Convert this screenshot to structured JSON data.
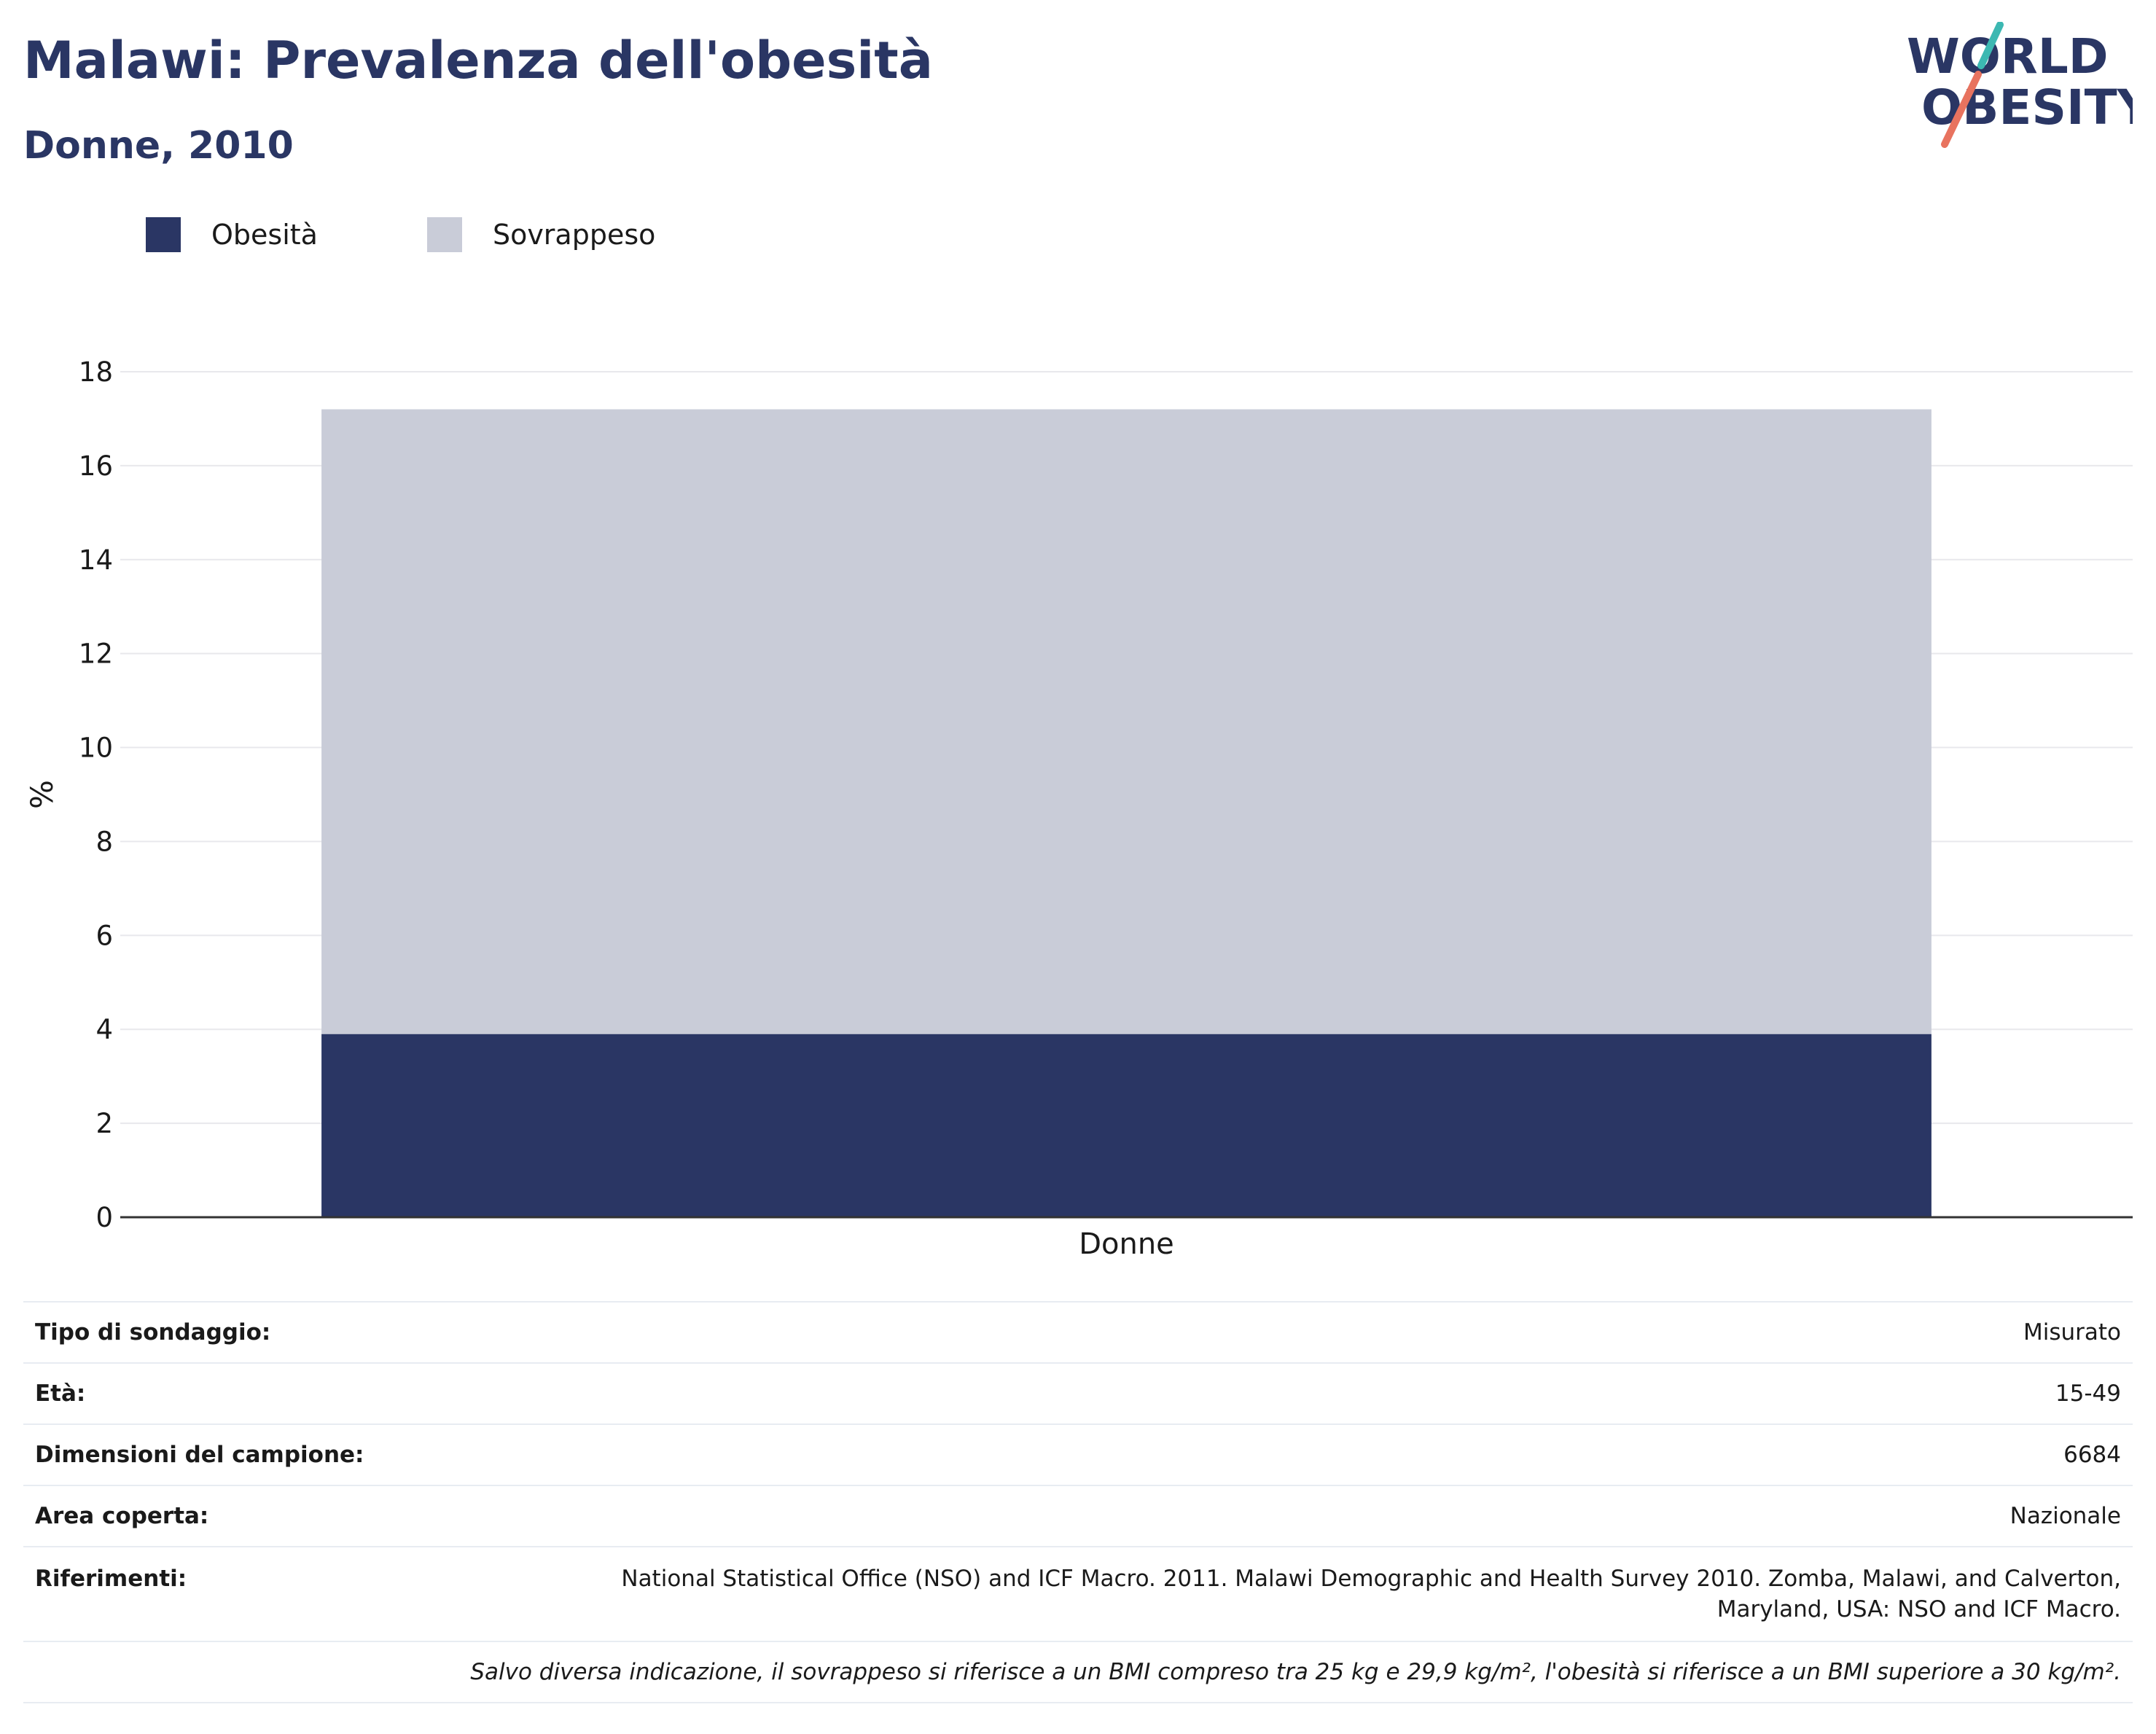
{
  "header": {
    "title": "Malawi: Prevalenza dell'obesità",
    "subtitle": "Donne, 2010",
    "logo_line1": "WORLD",
    "logo_line2": "OBESITY"
  },
  "legend": [
    {
      "label": "Obesità",
      "color": "#2a3664"
    },
    {
      "label": "Sovrappeso",
      "color": "#c9ccd8"
    }
  ],
  "chart_data": {
    "type": "bar",
    "stacked": true,
    "categories": [
      "Donne"
    ],
    "series": [
      {
        "name": "Obesità",
        "values": [
          3.9
        ],
        "color": "#2a3664"
      },
      {
        "name": "Sovrappeso",
        "values": [
          13.3
        ],
        "color": "#c9ccd8"
      }
    ],
    "ylabel": "%",
    "ylim": [
      0,
      18
    ],
    "yticks": [
      0,
      2,
      4,
      6,
      8,
      10,
      12,
      14,
      16,
      18
    ],
    "grid": true,
    "legend_position": "top-left"
  },
  "info": {
    "survey_type": {
      "label": "Tipo di sondaggio:",
      "value": "Misurato"
    },
    "age": {
      "label": "Età:",
      "value": "15-49"
    },
    "sample_size": {
      "label": "Dimensioni del campione:",
      "value": "6684"
    },
    "area": {
      "label": "Area coperta:",
      "value": "Nazionale"
    },
    "references": {
      "label": "Riferimenti:",
      "value_line1": "National Statistical Office (NSO) and ICF Macro. 2011. Malawi Demographic and Health Survey 2010. Zomba, Malawi, and Calverton,",
      "value_line2": "Maryland, USA: NSO and ICF Macro."
    },
    "note": "Salvo diversa indicazione, il sovrappeso si riferisce a un BMI compreso tra 25 kg e 29,9 kg/m², l'obesità si riferisce a un BMI superiore a 30 kg/m²."
  }
}
